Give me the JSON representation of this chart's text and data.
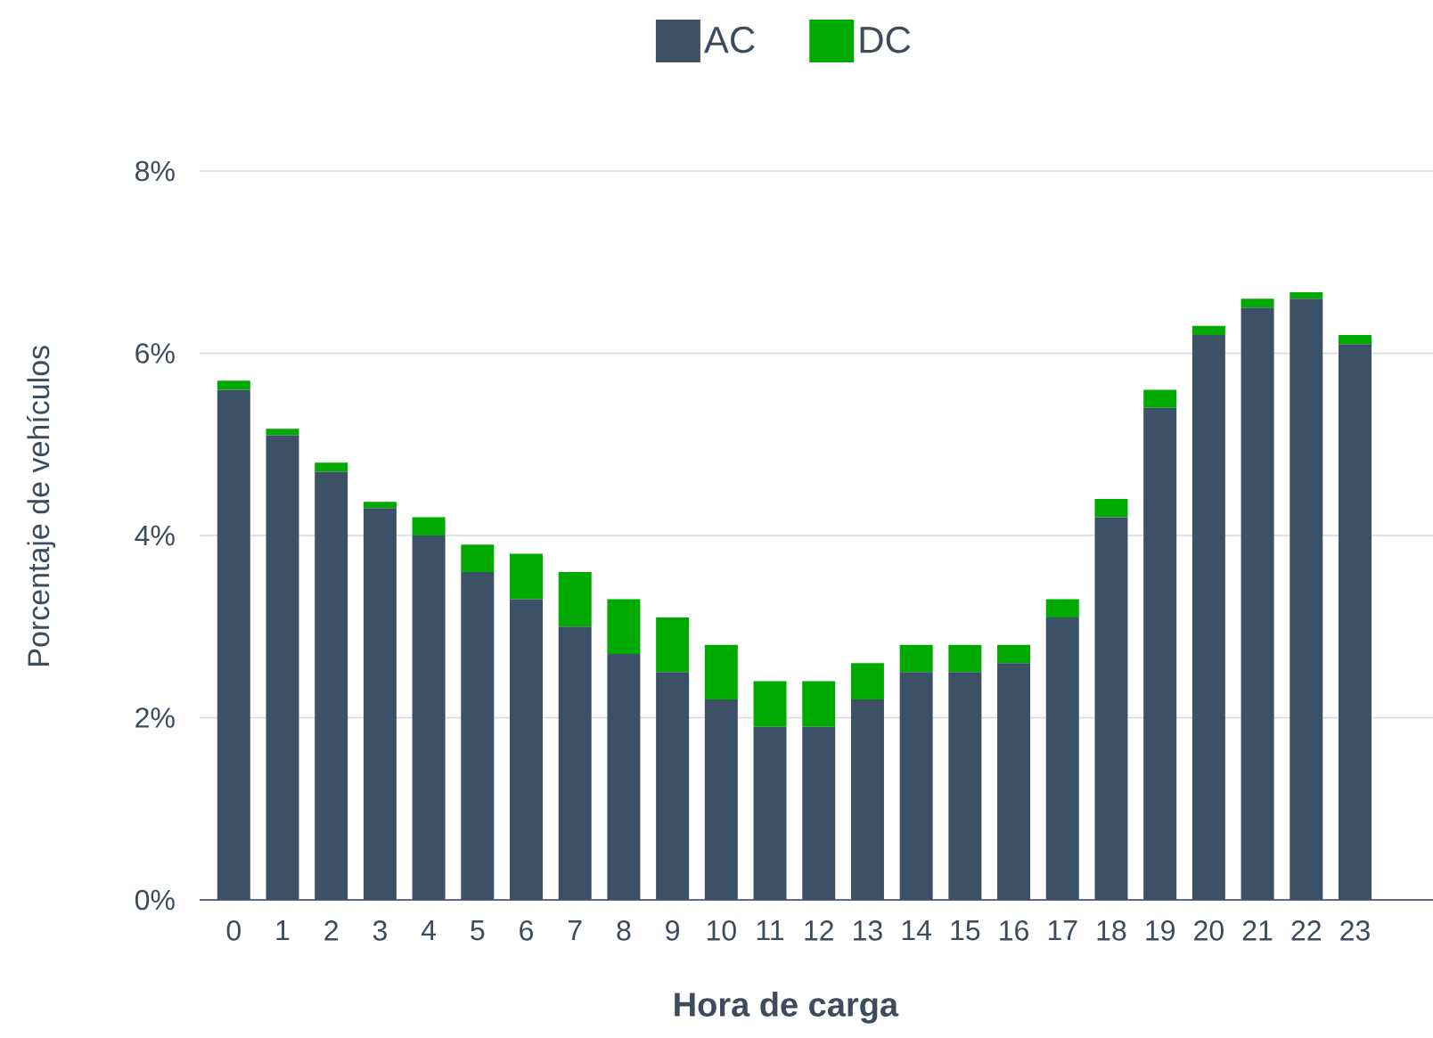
{
  "chart_data": {
    "type": "bar",
    "stacked": true,
    "xlabel": "Hora de carga",
    "ylabel": "Porcentaje de vehículos",
    "categories": [
      "0",
      "1",
      "2",
      "3",
      "4",
      "5",
      "6",
      "7",
      "8",
      "9",
      "10",
      "11",
      "12",
      "13",
      "14",
      "15",
      "16",
      "17",
      "18",
      "19",
      "20",
      "21",
      "22",
      "23"
    ],
    "series": [
      {
        "name": "AC",
        "color": "#3d5166",
        "values": [
          5.6,
          5.1,
          4.7,
          4.3,
          4.0,
          3.6,
          3.3,
          3.0,
          2.7,
          2.5,
          2.2,
          1.9,
          1.9,
          2.2,
          2.5,
          2.5,
          2.6,
          3.1,
          4.2,
          5.4,
          6.2,
          6.5,
          6.6,
          6.1
        ]
      },
      {
        "name": "DC",
        "color": "#00aa00",
        "values": [
          0.1,
          0.07,
          0.1,
          0.07,
          0.2,
          0.3,
          0.5,
          0.6,
          0.6,
          0.6,
          0.6,
          0.5,
          0.5,
          0.4,
          0.3,
          0.3,
          0.2,
          0.2,
          0.2,
          0.2,
          0.1,
          0.1,
          0.07,
          0.1
        ]
      }
    ],
    "ylim": [
      0,
      8
    ],
    "yticks": [
      {
        "value": 0,
        "label": "0%"
      },
      {
        "value": 2,
        "label": "2%"
      },
      {
        "value": 4,
        "label": "4%"
      },
      {
        "value": 6,
        "label": "6%"
      },
      {
        "value": 8,
        "label": "8%"
      }
    ],
    "grid": "y",
    "legend": "top"
  }
}
